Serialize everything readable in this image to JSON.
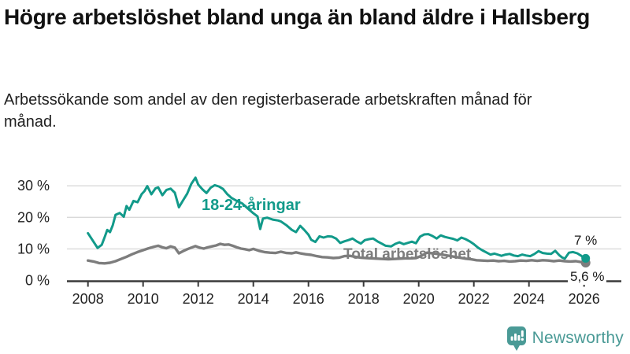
{
  "title": "Högre arbetslöshet bland unga än bland äldre i Hallsberg",
  "subtitle": "Arbetssökande som andel av den registerbaserade arbetskraften månad för månad.",
  "branding": {
    "name": "Newsworthy",
    "color": "#4a9a96",
    "icon": "speech-bubble-bar-chart"
  },
  "chart_data": {
    "type": "line",
    "title": "Högre arbetslöshet bland unga än bland äldre i Hallsberg",
    "xlabel": "",
    "ylabel": "",
    "grid": "horizontal",
    "legend_position": "inline-labels",
    "xlim": [
      2007.2,
      2026.6
    ],
    "ylim": [
      0,
      34
    ],
    "x_ticks": [
      2008,
      2010,
      2012,
      2014,
      2016,
      2018,
      2020,
      2022,
      2024,
      2026
    ],
    "y_ticks": [
      {
        "value": 0,
        "label": "0 %"
      },
      {
        "value": 10,
        "label": "10 %"
      },
      {
        "value": 20,
        "label": "20 %"
      },
      {
        "value": 30,
        "label": "30 %"
      }
    ],
    "colors": {
      "grid": "#d9d9d9",
      "axis": "#3a3a3a",
      "tick_text": "#222222"
    },
    "series": [
      {
        "name": "Total arbetslöshet",
        "color": "#7d7d7d",
        "line_width": 3.4,
        "end_label": "5,6 %",
        "end_dot": true,
        "points": [
          [
            2008.0,
            6.3
          ],
          [
            2008.2,
            6.0
          ],
          [
            2008.4,
            5.5
          ],
          [
            2008.6,
            5.4
          ],
          [
            2008.8,
            5.6
          ],
          [
            2009.0,
            6.1
          ],
          [
            2009.2,
            6.8
          ],
          [
            2009.4,
            7.5
          ],
          [
            2009.6,
            8.3
          ],
          [
            2009.8,
            9.0
          ],
          [
            2010.0,
            9.6
          ],
          [
            2010.2,
            10.2
          ],
          [
            2010.4,
            10.7
          ],
          [
            2010.55,
            11.0
          ],
          [
            2010.7,
            10.5
          ],
          [
            2010.85,
            10.2
          ],
          [
            2011.0,
            10.8
          ],
          [
            2011.15,
            10.4
          ],
          [
            2011.3,
            8.6
          ],
          [
            2011.45,
            9.3
          ],
          [
            2011.6,
            9.9
          ],
          [
            2011.75,
            10.4
          ],
          [
            2011.9,
            10.9
          ],
          [
            2012.05,
            10.4
          ],
          [
            2012.2,
            10.1
          ],
          [
            2012.35,
            10.5
          ],
          [
            2012.5,
            10.8
          ],
          [
            2012.65,
            11.1
          ],
          [
            2012.8,
            11.6
          ],
          [
            2012.95,
            11.3
          ],
          [
            2013.1,
            11.4
          ],
          [
            2013.25,
            11.0
          ],
          [
            2013.4,
            10.5
          ],
          [
            2013.55,
            10.1
          ],
          [
            2013.7,
            9.9
          ],
          [
            2013.85,
            9.6
          ],
          [
            2014.0,
            10.0
          ],
          [
            2014.2,
            9.4
          ],
          [
            2014.4,
            9.0
          ],
          [
            2014.6,
            8.8
          ],
          [
            2014.8,
            8.7
          ],
          [
            2015.0,
            9.1
          ],
          [
            2015.2,
            8.7
          ],
          [
            2015.4,
            8.6
          ],
          [
            2015.55,
            8.9
          ],
          [
            2015.7,
            8.6
          ],
          [
            2015.9,
            8.3
          ],
          [
            2016.1,
            8.1
          ],
          [
            2016.3,
            7.7
          ],
          [
            2016.5,
            7.4
          ],
          [
            2016.7,
            7.3
          ],
          [
            2016.9,
            7.1
          ],
          [
            2017.1,
            7.2
          ],
          [
            2017.3,
            7.7
          ],
          [
            2017.5,
            7.8
          ],
          [
            2017.7,
            7.5
          ],
          [
            2017.9,
            7.2
          ],
          [
            2018.1,
            7.1
          ],
          [
            2018.3,
            7.0
          ],
          [
            2018.5,
            6.9
          ],
          [
            2018.7,
            6.8
          ],
          [
            2018.9,
            6.7
          ],
          [
            2019.1,
            6.8
          ],
          [
            2019.3,
            6.9
          ],
          [
            2019.5,
            7.0
          ],
          [
            2019.7,
            7.0
          ],
          [
            2019.9,
            7.1
          ],
          [
            2020.1,
            7.8
          ],
          [
            2020.3,
            8.8
          ],
          [
            2020.5,
            8.6
          ],
          [
            2020.7,
            8.4
          ],
          [
            2020.9,
            8.1
          ],
          [
            2021.1,
            7.8
          ],
          [
            2021.3,
            7.5
          ],
          [
            2021.5,
            7.2
          ],
          [
            2021.7,
            6.9
          ],
          [
            2021.9,
            6.7
          ],
          [
            2022.1,
            6.4
          ],
          [
            2022.3,
            6.3
          ],
          [
            2022.5,
            6.2
          ],
          [
            2022.7,
            6.3
          ],
          [
            2022.9,
            6.1
          ],
          [
            2023.1,
            6.2
          ],
          [
            2023.3,
            6.0
          ],
          [
            2023.5,
            6.1
          ],
          [
            2023.7,
            6.3
          ],
          [
            2023.9,
            6.2
          ],
          [
            2024.1,
            6.4
          ],
          [
            2024.3,
            6.2
          ],
          [
            2024.5,
            6.4
          ],
          [
            2024.7,
            6.3
          ],
          [
            2024.9,
            6.1
          ],
          [
            2025.1,
            6.3
          ],
          [
            2025.3,
            6.1
          ],
          [
            2025.5,
            6.0
          ],
          [
            2025.7,
            6.1
          ],
          [
            2025.9,
            5.8
          ],
          [
            2026.0,
            5.6
          ]
        ]
      },
      {
        "name": "18-24-åringar",
        "color": "#129a8a",
        "line_width": 3.0,
        "end_label": "7 %",
        "end_dot": true,
        "points": [
          [
            2008.0,
            15.0
          ],
          [
            2008.2,
            12.3
          ],
          [
            2008.35,
            10.3
          ],
          [
            2008.5,
            11.3
          ],
          [
            2008.6,
            13.6
          ],
          [
            2008.7,
            16.0
          ],
          [
            2008.8,
            15.3
          ],
          [
            2008.9,
            17.5
          ],
          [
            2009.0,
            20.8
          ],
          [
            2009.15,
            21.4
          ],
          [
            2009.3,
            20.2
          ],
          [
            2009.4,
            23.6
          ],
          [
            2009.5,
            22.4
          ],
          [
            2009.65,
            25.2
          ],
          [
            2009.8,
            24.8
          ],
          [
            2009.95,
            27.4
          ],
          [
            2010.05,
            28.3
          ],
          [
            2010.15,
            29.9
          ],
          [
            2010.3,
            27.3
          ],
          [
            2010.45,
            29.2
          ],
          [
            2010.55,
            29.5
          ],
          [
            2010.7,
            27.0
          ],
          [
            2010.85,
            28.7
          ],
          [
            2011.0,
            29.1
          ],
          [
            2011.15,
            27.8
          ],
          [
            2011.3,
            23.2
          ],
          [
            2011.45,
            25.4
          ],
          [
            2011.6,
            27.5
          ],
          [
            2011.75,
            30.6
          ],
          [
            2011.9,
            32.6
          ],
          [
            2012.0,
            30.4
          ],
          [
            2012.15,
            28.9
          ],
          [
            2012.3,
            27.7
          ],
          [
            2012.45,
            29.4
          ],
          [
            2012.6,
            30.2
          ],
          [
            2012.75,
            29.8
          ],
          [
            2012.9,
            29.0
          ],
          [
            2013.05,
            27.4
          ],
          [
            2013.2,
            26.2
          ],
          [
            2013.4,
            25.2
          ],
          [
            2013.6,
            24.4
          ],
          [
            2013.8,
            22.8
          ],
          [
            2014.0,
            21.3
          ],
          [
            2014.15,
            20.3
          ],
          [
            2014.25,
            16.3
          ],
          [
            2014.35,
            19.6
          ],
          [
            2014.5,
            19.9
          ],
          [
            2014.7,
            19.3
          ],
          [
            2014.9,
            19.0
          ],
          [
            2015.0,
            18.7
          ],
          [
            2015.2,
            17.5
          ],
          [
            2015.4,
            16.0
          ],
          [
            2015.55,
            15.3
          ],
          [
            2015.7,
            17.3
          ],
          [
            2015.85,
            16.0
          ],
          [
            2016.0,
            14.5
          ],
          [
            2016.1,
            12.9
          ],
          [
            2016.25,
            12.2
          ],
          [
            2016.4,
            14.0
          ],
          [
            2016.55,
            13.6
          ],
          [
            2016.7,
            14.0
          ],
          [
            2016.85,
            13.9
          ],
          [
            2017.0,
            13.3
          ],
          [
            2017.15,
            11.9
          ],
          [
            2017.3,
            12.4
          ],
          [
            2017.45,
            12.8
          ],
          [
            2017.6,
            13.3
          ],
          [
            2017.75,
            12.4
          ],
          [
            2017.9,
            11.7
          ],
          [
            2018.05,
            12.8
          ],
          [
            2018.2,
            13.1
          ],
          [
            2018.35,
            13.3
          ],
          [
            2018.5,
            12.4
          ],
          [
            2018.65,
            11.7
          ],
          [
            2018.8,
            11.0
          ],
          [
            2019.0,
            10.8
          ],
          [
            2019.15,
            11.6
          ],
          [
            2019.3,
            12.1
          ],
          [
            2019.45,
            11.5
          ],
          [
            2019.6,
            11.9
          ],
          [
            2019.75,
            12.3
          ],
          [
            2019.9,
            11.8
          ],
          [
            2020.05,
            13.9
          ],
          [
            2020.2,
            14.6
          ],
          [
            2020.35,
            14.7
          ],
          [
            2020.5,
            14.1
          ],
          [
            2020.65,
            13.3
          ],
          [
            2020.8,
            14.3
          ],
          [
            2020.95,
            13.8
          ],
          [
            2021.1,
            13.5
          ],
          [
            2021.25,
            13.2
          ],
          [
            2021.4,
            12.7
          ],
          [
            2021.55,
            13.6
          ],
          [
            2021.7,
            13.1
          ],
          [
            2021.85,
            12.4
          ],
          [
            2022.0,
            11.5
          ],
          [
            2022.15,
            10.4
          ],
          [
            2022.3,
            9.6
          ],
          [
            2022.45,
            8.9
          ],
          [
            2022.6,
            8.2
          ],
          [
            2022.75,
            8.5
          ],
          [
            2022.9,
            8.1
          ],
          [
            2023.0,
            7.8
          ],
          [
            2023.15,
            8.2
          ],
          [
            2023.3,
            8.4
          ],
          [
            2023.45,
            7.9
          ],
          [
            2023.6,
            7.7
          ],
          [
            2023.75,
            8.2
          ],
          [
            2023.9,
            7.9
          ],
          [
            2024.05,
            7.7
          ],
          [
            2024.2,
            8.4
          ],
          [
            2024.35,
            9.3
          ],
          [
            2024.5,
            8.7
          ],
          [
            2024.65,
            8.5
          ],
          [
            2024.8,
            8.4
          ],
          [
            2024.95,
            9.4
          ],
          [
            2025.1,
            8.0
          ],
          [
            2025.2,
            7.3
          ],
          [
            2025.3,
            6.9
          ],
          [
            2025.45,
            8.8
          ],
          [
            2025.6,
            9.0
          ],
          [
            2025.75,
            8.6
          ],
          [
            2025.9,
            7.8
          ],
          [
            2026.0,
            7.0
          ]
        ]
      }
    ]
  }
}
